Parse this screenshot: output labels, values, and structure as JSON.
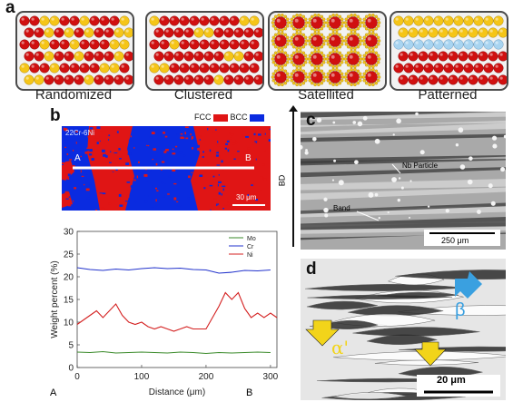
{
  "panel_labels": {
    "a": "a",
    "b": "b",
    "c": "c",
    "d": "d"
  },
  "schemes": [
    {
      "caption": "Randomized"
    },
    {
      "caption": "Clustered"
    },
    {
      "caption": "Satellited"
    },
    {
      "caption": "Patterned"
    }
  ],
  "ebsd": {
    "sample_label": "22Cr-6Ni",
    "legend_fcc": "FCC",
    "legend_bcc": "BCC",
    "fcc_color": "#e01515",
    "bcc_color": "#0a2be0",
    "point_a": "A",
    "point_b": "B",
    "scale_bar": "30 μm"
  },
  "micrograph_c": {
    "axis_label": "BD",
    "annotation_particle": "Nb Particle",
    "annotation_band": "Band",
    "scale_bar": "250 μm"
  },
  "micrograph_d": {
    "label_beta": "β",
    "label_alpha": "α'",
    "scale_bar": "20 μm",
    "arrow_blue_color": "#3aa0e0",
    "arrow_yellow_color": "#f2d41a"
  },
  "chart_data": {
    "type": "line",
    "xlabel": "Distance (μm)",
    "ylabel": "Weight percent (%)",
    "xlim": [
      0,
      310
    ],
    "ylim": [
      0,
      30
    ],
    "xticks": [
      0,
      100,
      200,
      300
    ],
    "yticks": [
      0,
      5,
      10,
      15,
      20,
      25,
      30
    ],
    "x_end_labels": {
      "left": "A",
      "right": "B"
    },
    "legend_position": "top-right",
    "series": [
      {
        "name": "Mo",
        "color": "#3a8a2a",
        "x": [
          0,
          20,
          40,
          60,
          80,
          100,
          120,
          140,
          160,
          180,
          200,
          220,
          240,
          260,
          280,
          300
        ],
        "y": [
          3.4,
          3.3,
          3.5,
          3.2,
          3.3,
          3.4,
          3.3,
          3.2,
          3.4,
          3.3,
          3.1,
          3.3,
          3.2,
          3.3,
          3.4,
          3.3
        ]
      },
      {
        "name": "Cr",
        "color": "#2233cc",
        "x": [
          0,
          20,
          40,
          60,
          80,
          100,
          120,
          140,
          160,
          180,
          200,
          220,
          240,
          260,
          280,
          300
        ],
        "y": [
          22.0,
          21.6,
          21.4,
          21.7,
          21.5,
          21.8,
          22.0,
          21.8,
          21.9,
          21.6,
          21.5,
          20.8,
          21.0,
          21.4,
          21.3,
          21.5
        ]
      },
      {
        "name": "Ni",
        "color": "#d42020",
        "x": [
          0,
          10,
          20,
          30,
          40,
          50,
          60,
          70,
          80,
          90,
          100,
          110,
          120,
          130,
          140,
          150,
          160,
          170,
          180,
          190,
          200,
          210,
          220,
          230,
          240,
          250,
          260,
          270,
          280,
          290,
          300,
          310
        ],
        "y": [
          9.5,
          10.5,
          11.5,
          12.5,
          11.0,
          12.5,
          14.0,
          11.5,
          10.0,
          9.5,
          10.0,
          9.0,
          8.5,
          9.0,
          8.5,
          8.0,
          8.5,
          9.0,
          8.5,
          8.5,
          8.5,
          11.0,
          13.5,
          16.5,
          15.0,
          16.5,
          13.0,
          11.0,
          12.0,
          11.0,
          12.0,
          11.0
        ]
      }
    ]
  }
}
